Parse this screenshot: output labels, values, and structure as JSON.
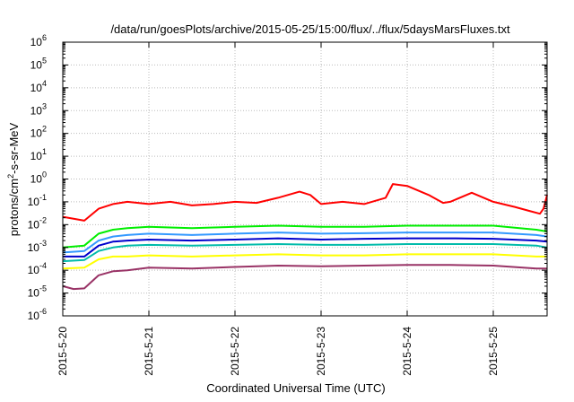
{
  "chart_data": {
    "type": "line",
    "title": "/data/run/goesPlots/archive/2015-05-25/15:00/flux/../flux/5daysMarsFluxes.txt",
    "xlabel": "Coordinated Universal Time (UTC)",
    "ylabel": {
      "pre": "protons/cm",
      "sup": "2",
      "post": "-s-sr-MeV"
    },
    "yscale": "log",
    "ylim": [
      1e-06,
      1000000.0
    ],
    "xlim": [
      "2015-05-20T00:00",
      "2015-05-25T15:00"
    ],
    "grid": true,
    "legend": "none",
    "y_ticks": [
      {
        "base": "10",
        "exp": "-6"
      },
      {
        "base": "10",
        "exp": "-5"
      },
      {
        "base": "10",
        "exp": "-4"
      },
      {
        "base": "10",
        "exp": "-3"
      },
      {
        "base": "10",
        "exp": "-2"
      },
      {
        "base": "10",
        "exp": "-1"
      },
      {
        "base": "10",
        "exp": "0"
      },
      {
        "base": "10",
        "exp": "1"
      },
      {
        "base": "10",
        "exp": "2"
      },
      {
        "base": "10",
        "exp": "3"
      },
      {
        "base": "10",
        "exp": "4"
      },
      {
        "base": "10",
        "exp": "5"
      },
      {
        "base": "10",
        "exp": "6"
      }
    ],
    "x_ticks": [
      "2015-5-20",
      "2015-5-21",
      "2015-5-22",
      "2015-5-23",
      "2015-5-24",
      "2015-5-25"
    ],
    "series": [
      {
        "color": "#ff0000",
        "x": [
          "2015-05-20T00:00",
          "2015-05-20T06:00",
          "2015-05-20T10:00",
          "2015-05-20T14:00",
          "2015-05-20T18:00",
          "2015-05-21T00:00",
          "2015-05-21T06:00",
          "2015-05-21T12:00",
          "2015-05-21T18:00",
          "2015-05-22T00:00",
          "2015-05-22T06:00",
          "2015-05-22T12:00",
          "2015-05-22T18:00",
          "2015-05-22T21:00",
          "2015-05-23T00:00",
          "2015-05-23T06:00",
          "2015-05-23T12:00",
          "2015-05-23T18:00",
          "2015-05-23T20:00",
          "2015-05-24T00:00",
          "2015-05-24T06:00",
          "2015-05-24T10:00",
          "2015-05-24T12:00",
          "2015-05-24T18:00",
          "2015-05-25T00:00",
          "2015-05-25T06:00",
          "2015-05-25T10:00",
          "2015-05-25T13:00",
          "2015-05-25T14:00",
          "2015-05-25T15:00"
        ],
        "y": [
          0.022,
          0.015,
          0.05,
          0.08,
          0.1,
          0.08,
          0.1,
          0.07,
          0.08,
          0.1,
          0.09,
          0.15,
          0.28,
          0.2,
          0.08,
          0.1,
          0.08,
          0.15,
          0.6,
          0.5,
          0.2,
          0.09,
          0.1,
          0.25,
          0.1,
          0.06,
          0.04,
          0.03,
          0.05,
          0.2
        ]
      },
      {
        "color": "#00ee00",
        "x": [
          "2015-05-20T00:00",
          "2015-05-20T06:00",
          "2015-05-20T10:00",
          "2015-05-20T14:00",
          "2015-05-20T18:00",
          "2015-05-21T00:00",
          "2015-05-21T12:00",
          "2015-05-22T00:00",
          "2015-05-22T12:00",
          "2015-05-23T00:00",
          "2015-05-23T12:00",
          "2015-05-24T00:00",
          "2015-05-24T12:00",
          "2015-05-25T00:00",
          "2015-05-25T12:00",
          "2015-05-25T15:00"
        ],
        "y": [
          0.001,
          0.0012,
          0.004,
          0.006,
          0.007,
          0.008,
          0.007,
          0.008,
          0.009,
          0.008,
          0.008,
          0.009,
          0.009,
          0.009,
          0.006,
          0.005
        ]
      },
      {
        "color": "#3399ff",
        "x": [
          "2015-05-20T00:00",
          "2015-05-20T06:00",
          "2015-05-20T10:00",
          "2015-05-20T14:00",
          "2015-05-20T18:00",
          "2015-05-21T00:00",
          "2015-05-21T12:00",
          "2015-05-22T00:00",
          "2015-05-22T12:00",
          "2015-05-23T00:00",
          "2015-05-23T12:00",
          "2015-05-24T00:00",
          "2015-05-24T12:00",
          "2015-05-25T00:00",
          "2015-05-25T12:00",
          "2015-05-25T15:00"
        ],
        "y": [
          0.0006,
          0.0007,
          0.002,
          0.003,
          0.0035,
          0.004,
          0.0035,
          0.004,
          0.0045,
          0.004,
          0.0042,
          0.0045,
          0.0045,
          0.0045,
          0.0035,
          0.003
        ]
      },
      {
        "color": "#0000cc",
        "x": [
          "2015-05-20T00:00",
          "2015-05-20T06:00",
          "2015-05-20T10:00",
          "2015-05-20T14:00",
          "2015-05-20T18:00",
          "2015-05-21T00:00",
          "2015-05-21T12:00",
          "2015-05-22T00:00",
          "2015-05-22T12:00",
          "2015-05-23T00:00",
          "2015-05-23T12:00",
          "2015-05-24T00:00",
          "2015-05-24T12:00",
          "2015-05-25T00:00",
          "2015-05-25T12:00",
          "2015-05-25T15:00"
        ],
        "y": [
          0.0004,
          0.0004,
          0.0012,
          0.0018,
          0.002,
          0.0022,
          0.002,
          0.0022,
          0.0025,
          0.0022,
          0.0024,
          0.0025,
          0.0025,
          0.0024,
          0.002,
          0.0018
        ]
      },
      {
        "color": "#00bbaa",
        "x": [
          "2015-05-20T00:00",
          "2015-05-20T06:00",
          "2015-05-20T10:00",
          "2015-05-20T14:00",
          "2015-05-20T18:00",
          "2015-05-21T00:00",
          "2015-05-21T12:00",
          "2015-05-22T00:00",
          "2015-05-22T12:00",
          "2015-05-23T00:00",
          "2015-05-23T12:00",
          "2015-05-24T00:00",
          "2015-05-24T12:00",
          "2015-05-25T00:00",
          "2015-05-25T12:00",
          "2015-05-25T15:00"
        ],
        "y": [
          0.00025,
          0.00028,
          0.0007,
          0.001,
          0.0012,
          0.0013,
          0.0012,
          0.0013,
          0.0014,
          0.0013,
          0.0013,
          0.0014,
          0.0014,
          0.0014,
          0.0012,
          0.001
        ]
      },
      {
        "color": "#ffff00",
        "x": [
          "2015-05-20T00:00",
          "2015-05-20T06:00",
          "2015-05-20T10:00",
          "2015-05-20T14:00",
          "2015-05-20T18:00",
          "2015-05-21T00:00",
          "2015-05-21T12:00",
          "2015-05-22T00:00",
          "2015-05-22T12:00",
          "2015-05-23T00:00",
          "2015-05-23T12:00",
          "2015-05-24T00:00",
          "2015-05-24T12:00",
          "2015-05-25T00:00",
          "2015-05-25T12:00",
          "2015-05-25T15:00"
        ],
        "y": [
          0.00012,
          0.00013,
          0.0003,
          0.0004,
          0.0004,
          0.00045,
          0.0004,
          0.00045,
          0.0005,
          0.00045,
          0.00045,
          0.0005,
          0.0005,
          0.0005,
          0.0004,
          0.0004
        ]
      },
      {
        "color": "#993366",
        "x": [
          "2015-05-20T00:00",
          "2015-05-20T03:00",
          "2015-05-20T06:00",
          "2015-05-20T10:00",
          "2015-05-20T14:00",
          "2015-05-20T18:00",
          "2015-05-21T00:00",
          "2015-05-21T12:00",
          "2015-05-22T00:00",
          "2015-05-22T12:00",
          "2015-05-23T00:00",
          "2015-05-23T12:00",
          "2015-05-24T00:00",
          "2015-05-24T12:00",
          "2015-05-25T00:00",
          "2015-05-25T12:00",
          "2015-05-25T15:00"
        ],
        "y": [
          2e-05,
          1.5e-05,
          1.6e-05,
          6e-05,
          9e-05,
          0.0001,
          0.00013,
          0.00012,
          0.00014,
          0.00016,
          0.00015,
          0.00016,
          0.00017,
          0.00017,
          0.00016,
          0.00012,
          0.00012
        ]
      }
    ]
  }
}
